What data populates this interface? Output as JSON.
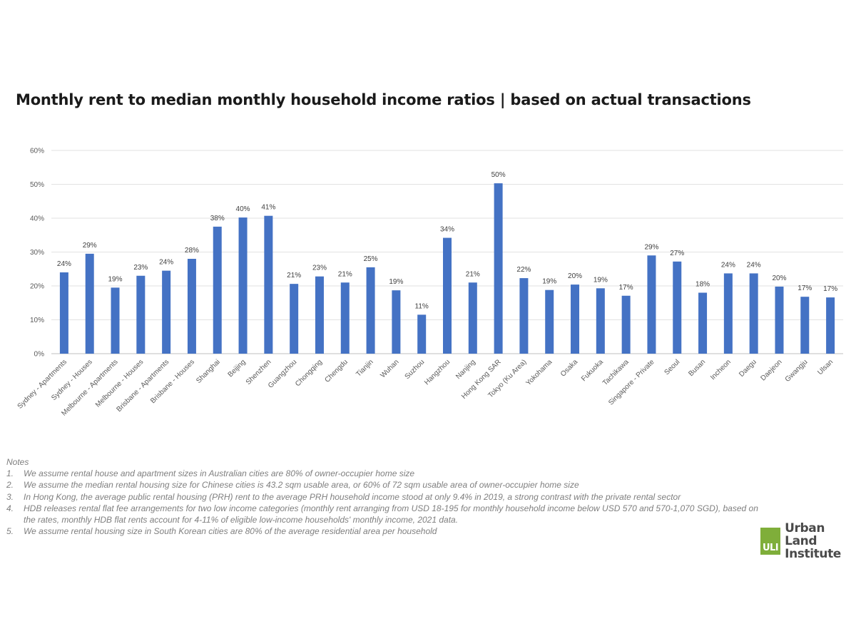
{
  "chart_data": {
    "type": "bar",
    "title": "Monthly rent to median monthly household income ratios | based on actual transactions",
    "xlabel": "",
    "ylabel": "",
    "ylim": [
      0,
      60
    ],
    "yticks": [
      "0%",
      "10%",
      "20%",
      "30%",
      "40%",
      "50%",
      "60%"
    ],
    "grid": true,
    "legend": "none",
    "bar_color": "#4472c4",
    "categories": [
      "Sydney - Apartments",
      "Sydney - Houses",
      "Melbourne - Apartments",
      "Melbourne - Houses",
      "Brisbane - Apartments",
      "Brisbane - Houses",
      "Shanghai",
      "Beijing",
      "Shenzhen",
      "Guangzhou",
      "Chongqing",
      "Chengdu",
      "Tianjin",
      "Wuhan",
      "Suzhou",
      "Hangzhou",
      "Nanjing",
      "Hong Kong SAR",
      "Tokyo (Ku Area)",
      "Yokohama",
      "Osaka",
      "Fukuoka",
      "Tachikawa",
      "Singapore - Private",
      "Seoul",
      "Busan",
      "Incheon",
      "Daegu",
      "Daejeon",
      "Gwangju",
      "Ulsan"
    ],
    "values": [
      24,
      29.5,
      19.5,
      23,
      24.5,
      28,
      37.5,
      40.2,
      40.7,
      20.6,
      22.8,
      21,
      25.5,
      18.7,
      11.5,
      34.2,
      21,
      50.3,
      22.3,
      18.8,
      20.4,
      19.3,
      17.1,
      29,
      27.2,
      18,
      23.7,
      23.7,
      19.8,
      16.8,
      16.6
    ],
    "data_labels": [
      "24%",
      "29%",
      "19%",
      "23%",
      "24%",
      "28%",
      "38%",
      "40%",
      "41%",
      "21%",
      "23%",
      "21%",
      "25%",
      "19%",
      "11%",
      "34%",
      "21%",
      "50%",
      "22%",
      "19%",
      "20%",
      "19%",
      "17%",
      "29%",
      "27%",
      "18%",
      "24%",
      "24%",
      "20%",
      "17%",
      "17%"
    ]
  },
  "notes": {
    "heading": "Notes",
    "items": [
      {
        "num": "1.",
        "text": "We assume rental house and apartment sizes in Australian cities are 80% of owner-occupier home size"
      },
      {
        "num": "2.",
        "text": "We assume the median rental housing size for Chinese cities is 43.2 sqm usable area, or 60% of 72 sqm usable area of owner-occupier home size"
      },
      {
        "num": "3.",
        "text": "In Hong Kong, the average public rental housing (PRH) rent to the average PRH household income stood at only 9.4% in 2019, a strong contrast with the private rental sector"
      },
      {
        "num": "4.",
        "text": "HDB releases rental flat fee arrangements for two low income categories (monthly rent arranging from USD 18-195 for monthly household income below USD 570 and 570-1,070 SGD), based on the rates, monthly HDB flat rents account for 4-11% of eligible low-income households' monthly income, 2021 data."
      },
      {
        "num": "5.",
        "text": "We assume rental housing size in South Korean cities are 80% of the average residential area per household"
      }
    ]
  },
  "logo": {
    "mark": "ULI",
    "line1": "Urban Land",
    "line2": "Institute",
    "color": "#7fae3a"
  }
}
